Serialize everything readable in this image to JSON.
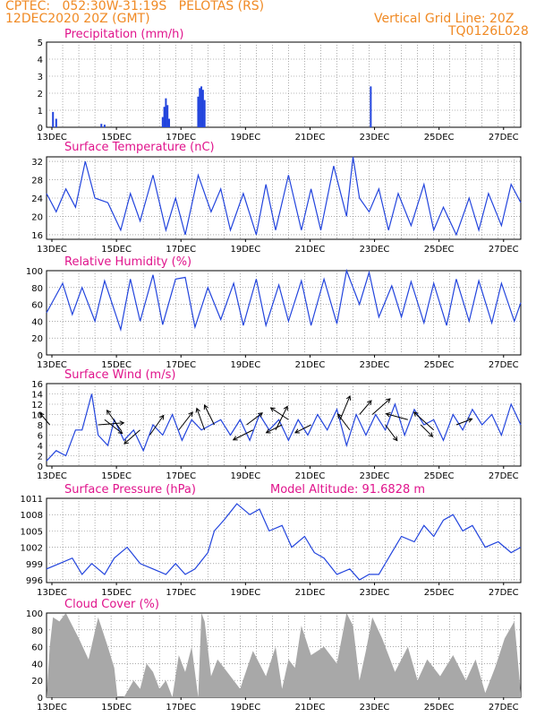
{
  "header": {
    "station_line": "CPTEC:   052:30W-31:19S   PELOTAS (RS)",
    "date_line": "12DEC2020 20Z (GMT)",
    "grid_note": "Vertical Grid Line: 20Z",
    "code": "TQ0126L028"
  },
  "colors": {
    "header": "#f08a24",
    "title": "#e0148c",
    "line": "#2244dd",
    "bar": "#2244dd",
    "cloud": "#a8a8a8",
    "arrow": "#000000"
  },
  "chart_data": [
    {
      "id": "precip",
      "type": "bar",
      "title": "Precipitation (mm/h)",
      "ylim": [
        0,
        5
      ],
      "yticks": [
        0,
        1,
        2,
        3,
        4,
        5
      ],
      "xlabels": [
        "13DEC",
        "15DEC",
        "17DEC",
        "19DEC",
        "21DEC",
        "23DEC",
        "25DEC",
        "27DEC"
      ],
      "x": [
        0.2,
        0.3,
        1.7,
        1.8,
        3.6,
        3.65,
        3.7,
        3.75,
        3.8,
        4.7,
        4.75,
        4.8,
        4.85,
        4.9,
        10.05
      ],
      "values": [
        0.9,
        0.5,
        0.2,
        0.15,
        0.6,
        1.2,
        1.7,
        1.3,
        0.5,
        1.8,
        2.3,
        2.4,
        2.2,
        1.6,
        2.4
      ]
    },
    {
      "id": "temp",
      "type": "line",
      "title": "Surface Temperature (nC)",
      "ylim": [
        15,
        33
      ],
      "yticks": [
        16,
        20,
        24,
        28,
        32
      ],
      "xlabels": [
        "13DEC",
        "15DEC",
        "17DEC",
        "19DEC",
        "21DEC",
        "23DEC",
        "25DEC",
        "27DEC"
      ],
      "x": [
        0,
        0.3,
        0.6,
        0.9,
        1.2,
        1.5,
        1.9,
        2.3,
        2.6,
        2.9,
        3.3,
        3.7,
        4.0,
        4.3,
        4.7,
        5.1,
        5.4,
        5.7,
        6.1,
        6.5,
        6.8,
        7.1,
        7.5,
        7.9,
        8.2,
        8.5,
        8.9,
        9.3,
        9.5,
        9.7,
        10.0,
        10.3,
        10.6,
        10.9,
        11.3,
        11.7,
        12.0,
        12.3,
        12.7,
        13.1,
        13.4,
        13.7,
        14.1,
        14.4,
        14.7
      ],
      "values": [
        25,
        21,
        26,
        22,
        32,
        24,
        23,
        17,
        25,
        19,
        29,
        17,
        24,
        16,
        29,
        21,
        26,
        17,
        25,
        16,
        27,
        17,
        29,
        17,
        26,
        17,
        31,
        20,
        33,
        24,
        21,
        26,
        17,
        25,
        18,
        27,
        17,
        22,
        16,
        24,
        17,
        25,
        18,
        27,
        23
      ]
    },
    {
      "id": "rh",
      "type": "line",
      "title": "Relative Humidity (%)",
      "ylim": [
        0,
        100
      ],
      "yticks": [
        0,
        20,
        40,
        60,
        80,
        100
      ],
      "xlabels": [
        "13DEC",
        "15DEC",
        "17DEC",
        "19DEC",
        "21DEC",
        "23DEC",
        "25DEC",
        "27DEC"
      ],
      "x": [
        0,
        0.5,
        0.8,
        1.1,
        1.5,
        1.8,
        2.3,
        2.6,
        2.9,
        3.3,
        3.6,
        4.0,
        4.3,
        4.6,
        5.0,
        5.4,
        5.8,
        6.1,
        6.5,
        6.8,
        7.2,
        7.5,
        7.9,
        8.2,
        8.6,
        9.0,
        9.3,
        9.7,
        10.0,
        10.3,
        10.7,
        11.0,
        11.3,
        11.7,
        12.0,
        12.4,
        12.7,
        13.1,
        13.4,
        13.8,
        14.1,
        14.5,
        14.7
      ],
      "values": [
        50,
        85,
        48,
        80,
        40,
        88,
        30,
        90,
        40,
        95,
        36,
        90,
        92,
        33,
        80,
        42,
        85,
        35,
        90,
        35,
        83,
        40,
        88,
        35,
        90,
        37,
        100,
        60,
        98,
        45,
        82,
        45,
        87,
        38,
        85,
        35,
        90,
        40,
        88,
        38,
        85,
        40,
        62
      ]
    },
    {
      "id": "wind",
      "type": "line",
      "title": "Surface Wind (m/s)",
      "ylim": [
        0,
        16
      ],
      "yticks": [
        0,
        2,
        4,
        6,
        8,
        10,
        12,
        14,
        16
      ],
      "xlabels": [
        "13DEC",
        "15DEC",
        "17DEC",
        "19DEC",
        "21DEC",
        "23DEC",
        "25DEC",
        "27DEC"
      ],
      "x": [
        0,
        0.3,
        0.6,
        0.9,
        1.1,
        1.4,
        1.6,
        1.9,
        2.1,
        2.4,
        2.7,
        3.0,
        3.3,
        3.6,
        3.9,
        4.2,
        4.5,
        4.8,
        5.1,
        5.4,
        5.7,
        6.0,
        6.3,
        6.6,
        6.9,
        7.2,
        7.5,
        7.8,
        8.1,
        8.4,
        8.7,
        9.0,
        9.3,
        9.6,
        9.9,
        10.2,
        10.5,
        10.8,
        11.1,
        11.4,
        11.7,
        12.0,
        12.3,
        12.6,
        12.9,
        13.2,
        13.5,
        13.8,
        14.1,
        14.4,
        14.7
      ],
      "values": [
        1,
        3,
        2,
        7,
        7,
        14,
        6,
        4,
        9,
        5,
        7,
        3,
        8,
        6,
        10,
        5,
        9,
        7,
        8,
        9,
        6,
        9,
        5,
        10,
        7,
        9,
        5,
        9,
        6,
        10,
        7,
        11,
        4,
        10,
        6,
        10,
        7,
        12,
        6,
        11,
        8,
        9,
        5,
        10,
        7,
        11,
        8,
        10,
        6,
        12,
        8
      ],
      "arrows": [
        [
          0.1,
          8,
          -0.5,
          0.6
        ],
        [
          1.6,
          8,
          1.3,
          0.1
        ],
        [
          1.8,
          9,
          0.9,
          -0.7
        ],
        [
          2.3,
          7,
          -0.7,
          1.0
        ],
        [
          2.9,
          7,
          -0.8,
          -0.7
        ],
        [
          3.2,
          6,
          0.7,
          1.0
        ],
        [
          4.1,
          7,
          0.7,
          0.9
        ],
        [
          4.9,
          7,
          -0.4,
          1.1
        ],
        [
          5.2,
          8,
          -0.5,
          1.0
        ],
        [
          6.2,
          8,
          0.8,
          0.6
        ],
        [
          6.4,
          7,
          -1.0,
          -0.5
        ],
        [
          7.1,
          7,
          0.6,
          1.2
        ],
        [
          7.3,
          8,
          -0.8,
          -0.4
        ],
        [
          7.5,
          9,
          -0.9,
          0.6
        ],
        [
          8.2,
          8,
          -0.8,
          -0.4
        ],
        [
          9.1,
          9,
          0.5,
          1.2
        ],
        [
          9.4,
          7,
          -0.6,
          0.8
        ],
        [
          9.7,
          10,
          0.6,
          0.7
        ],
        [
          10.1,
          10,
          0.9,
          0.8
        ],
        [
          10.5,
          8,
          0.6,
          -0.8
        ],
        [
          11.2,
          9,
          -1.1,
          0.3
        ],
        [
          11.6,
          8,
          0.6,
          -0.6
        ],
        [
          12.0,
          7,
          -1.0,
          0.9
        ],
        [
          12.7,
          8,
          0.8,
          0.3
        ]
      ]
    },
    {
      "id": "pressure",
      "type": "line",
      "title": "Surface Pressure (hPa)",
      "subtitle": "Model Altitude: 91.6828 m",
      "ylim": [
        995.5,
        1011
      ],
      "yticks": [
        996,
        999,
        1002,
        1005,
        1008,
        1011
      ],
      "xlabels": [
        "13DEC",
        "15DEC",
        "17DEC",
        "19DEC",
        "21DEC",
        "23DEC",
        "25DEC",
        "27DEC"
      ],
      "x": [
        0,
        0.4,
        0.8,
        1.1,
        1.4,
        1.8,
        2.1,
        2.5,
        2.9,
        3.3,
        3.7,
        4.0,
        4.3,
        4.6,
        5.0,
        5.2,
        5.5,
        5.9,
        6.3,
        6.6,
        6.9,
        7.3,
        7.6,
        8.0,
        8.3,
        8.6,
        9.0,
        9.4,
        9.7,
        10.0,
        10.3,
        10.7,
        11.0,
        11.4,
        11.7,
        12.0,
        12.3,
        12.6,
        12.9,
        13.2,
        13.6,
        14.0,
        14.4,
        14.7
      ],
      "values": [
        998,
        999,
        1000,
        997,
        999,
        997,
        1000,
        1002,
        999,
        998,
        997,
        999,
        997,
        998,
        1001,
        1005,
        1007,
        1010,
        1008,
        1009,
        1005,
        1006,
        1002,
        1004,
        1001,
        1000,
        997,
        998,
        996,
        997,
        997,
        1001,
        1004,
        1003,
        1006,
        1004,
        1007,
        1008,
        1005,
        1006,
        1002,
        1003,
        1001,
        1002
      ]
    },
    {
      "id": "cloud",
      "type": "area",
      "title": "Cloud Cover (%)",
      "ylim": [
        0,
        100
      ],
      "yticks": [
        0,
        20,
        40,
        60,
        80,
        100
      ],
      "xlabels": [
        "13DEC",
        "15DEC",
        "17DEC",
        "19DEC",
        "21DEC",
        "23DEC",
        "25DEC",
        "27DEC"
      ],
      "x": [
        0,
        0.1,
        0.2,
        0.4,
        0.6,
        0.8,
        1.0,
        1.3,
        1.6,
        1.9,
        2.1,
        2.2,
        2.4,
        2.7,
        2.9,
        3.1,
        3.3,
        3.5,
        3.7,
        3.9,
        4.1,
        4.3,
        4.5,
        4.7,
        4.8,
        4.9,
        5.1,
        5.3,
        5.6,
        6.0,
        6.4,
        6.8,
        7.1,
        7.3,
        7.5,
        7.7,
        7.9,
        8.2,
        8.6,
        9.0,
        9.3,
        9.5,
        9.7,
        9.9,
        10.1,
        10.4,
        10.8,
        11.2,
        11.5,
        11.8,
        12.2,
        12.6,
        13.0,
        13.3,
        13.6,
        13.9,
        14.2,
        14.5,
        14.7
      ],
      "values": [
        0,
        60,
        95,
        90,
        100,
        85,
        70,
        45,
        95,
        60,
        35,
        0,
        0,
        20,
        10,
        40,
        30,
        10,
        20,
        0,
        50,
        30,
        60,
        0,
        100,
        90,
        25,
        45,
        30,
        10,
        55,
        25,
        60,
        10,
        45,
        35,
        85,
        50,
        60,
        40,
        100,
        85,
        20,
        55,
        95,
        70,
        30,
        60,
        20,
        45,
        25,
        50,
        20,
        45,
        5,
        35,
        70,
        90,
        5
      ]
    }
  ]
}
